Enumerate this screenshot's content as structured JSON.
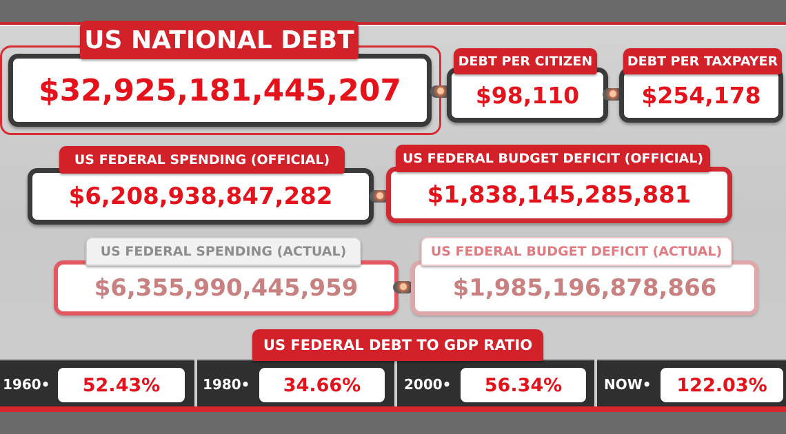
{
  "national_debt": {
    "label": "US NATIONAL DEBT",
    "value": "$32,925,181,445,207"
  },
  "debt_per_citizen": {
    "label": "DEBT PER CITIZEN",
    "value": "$98,110"
  },
  "debt_per_taxpayer": {
    "label": "DEBT PER TAXPAYER",
    "value": "$254,178"
  },
  "spending_official": {
    "label": "US FEDERAL SPENDING (OFFICIAL)",
    "value": "$6,208,938,847,282"
  },
  "deficit_official": {
    "label": "US FEDERAL BUDGET DEFICIT (OFFICIAL)",
    "value": "$1,838,145,285,881"
  },
  "spending_actual": {
    "label": "US FEDERAL SPENDING (ACTUAL)",
    "value": "$6,355,990,445,959"
  },
  "deficit_actual": {
    "label": "US FEDERAL BUDGET DEFICIT (ACTUAL)",
    "value": "$1,985,196,878,866"
  },
  "gdp_ratio": {
    "label": "US FEDERAL DEBT TO GDP RATIO",
    "items": [
      {
        "year": "1960•",
        "value": "52.43%"
      },
      {
        "year": "1980•",
        "value": "34.66%"
      },
      {
        "year": "2000•",
        "value": "56.34%"
      },
      {
        "year": "NOW•",
        "value": "122.03%"
      }
    ]
  },
  "colors": {
    "accent_red": "#d3212a",
    "value_red": "#e4131b",
    "muted_value": "#c88080",
    "band_gray": "#6a6a6a"
  },
  "icons": {
    "connector": "connector-link-icon"
  }
}
